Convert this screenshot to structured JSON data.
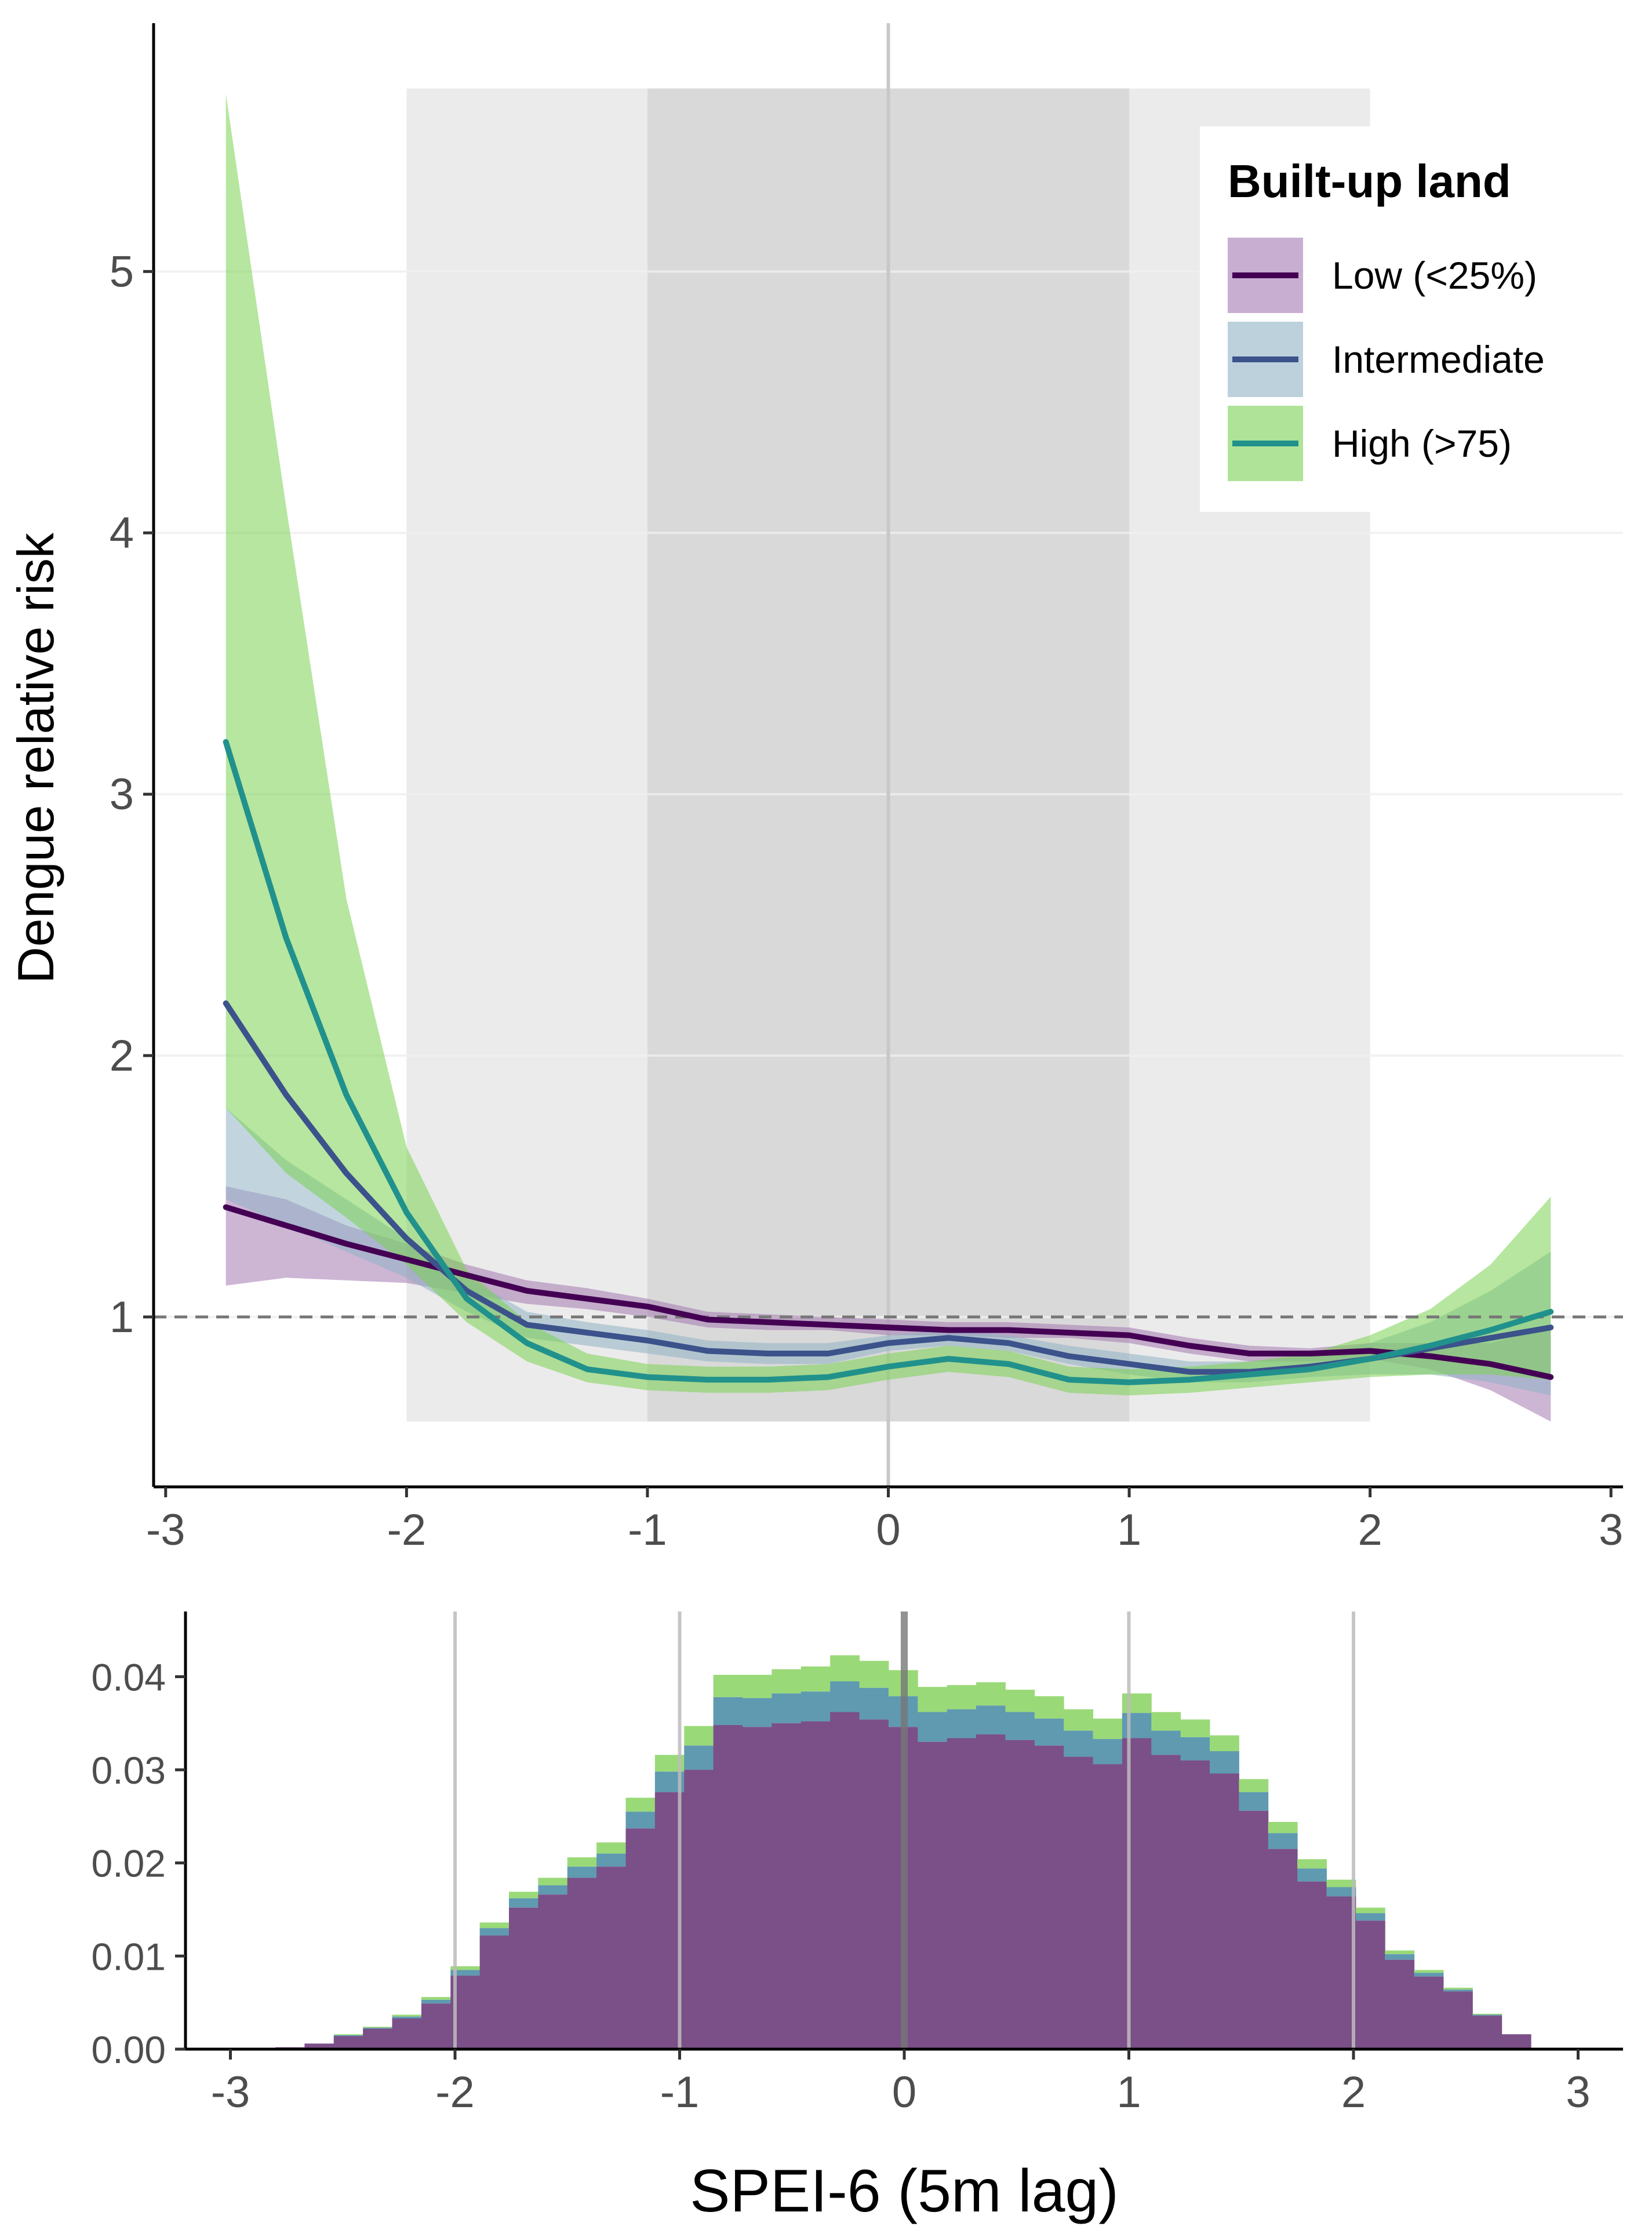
{
  "chart_data": [
    {
      "type": "line",
      "title": "",
      "xlabel": "",
      "ylabel": "Dengue relative risk",
      "xlim": [
        -3.05,
        3.05
      ],
      "ylim": [
        0.35,
        5.95
      ],
      "x_ticks": [
        -3,
        -2,
        -1,
        0,
        1,
        2,
        3
      ],
      "x_tick_labels": [
        "-3",
        "-2",
        "-1",
        "0",
        "1",
        "2",
        "3"
      ],
      "y_ticks": [
        1,
        2,
        3,
        4,
        5
      ],
      "y_tick_labels": [
        "1",
        "2",
        "3",
        "4",
        "5"
      ],
      "reference_line": 1,
      "vertical_line": 0,
      "shaded_regions": [
        {
          "x": [
            -2,
            2
          ],
          "y": [
            0.6,
            5.7
          ],
          "color": "#ebebeb"
        },
        {
          "x": [
            -1,
            1
          ],
          "y": [
            0.6,
            5.7
          ],
          "color": "#d9d9d9"
        }
      ],
      "legend": {
        "title": "Built-up land",
        "position": "top-right"
      },
      "x": [
        -2.75,
        -2.5,
        -2.25,
        -2,
        -1.75,
        -1.5,
        -1.25,
        -1,
        -0.75,
        -0.5,
        -0.25,
        0,
        0.25,
        0.5,
        0.75,
        1,
        1.25,
        1.5,
        1.75,
        2,
        2.25,
        2.5,
        2.75
      ],
      "series": [
        {
          "name": "Low (<25%)",
          "line_color": "#440154",
          "band_color": "#a478b0",
          "values": [
            1.42,
            1.35,
            1.28,
            1.22,
            1.16,
            1.1,
            1.07,
            1.04,
            0.99,
            0.98,
            0.97,
            0.96,
            0.95,
            0.95,
            0.94,
            0.93,
            0.89,
            0.86,
            0.86,
            0.87,
            0.85,
            0.82,
            0.77
          ],
          "lower": [
            1.12,
            1.15,
            1.14,
            1.13,
            1.09,
            1.05,
            1.03,
            1.0,
            0.96,
            0.95,
            0.95,
            0.93,
            0.93,
            0.92,
            0.92,
            0.9,
            0.86,
            0.83,
            0.83,
            0.84,
            0.8,
            0.72,
            0.6
          ],
          "upper": [
            1.5,
            1.45,
            1.35,
            1.28,
            1.2,
            1.14,
            1.11,
            1.07,
            1.02,
            1.01,
            1.0,
            0.99,
            0.98,
            0.98,
            0.97,
            0.96,
            0.92,
            0.89,
            0.88,
            0.9,
            0.9,
            0.9,
            0.96
          ]
        },
        {
          "name": "Intermediate",
          "line_color": "#3b528b",
          "band_color": "#8fb3c4",
          "values": [
            2.2,
            1.85,
            1.55,
            1.3,
            1.1,
            0.97,
            0.94,
            0.91,
            0.87,
            0.86,
            0.86,
            0.9,
            0.92,
            0.9,
            0.85,
            0.82,
            0.79,
            0.79,
            0.81,
            0.84,
            0.88,
            0.92,
            0.96
          ],
          "lower": [
            1.45,
            1.35,
            1.25,
            1.15,
            1.02,
            0.92,
            0.89,
            0.86,
            0.83,
            0.82,
            0.82,
            0.87,
            0.89,
            0.87,
            0.82,
            0.78,
            0.75,
            0.75,
            0.77,
            0.78,
            0.78,
            0.75,
            0.7
          ],
          "upper": [
            1.8,
            1.6,
            1.45,
            1.3,
            1.15,
            1.02,
            0.98,
            0.95,
            0.91,
            0.9,
            0.9,
            0.93,
            0.95,
            0.93,
            0.89,
            0.86,
            0.83,
            0.83,
            0.85,
            0.9,
            0.98,
            1.1,
            1.25
          ]
        },
        {
          "name": "High (>75)",
          "line_color": "#21918c",
          "band_color": "#7ad151",
          "values": [
            3.2,
            2.45,
            1.85,
            1.4,
            1.07,
            0.9,
            0.8,
            0.77,
            0.76,
            0.76,
            0.77,
            0.81,
            0.84,
            0.82,
            0.76,
            0.75,
            0.76,
            0.78,
            0.8,
            0.84,
            0.89,
            0.95,
            1.02
          ],
          "lower": [
            1.8,
            1.55,
            1.38,
            1.2,
            0.98,
            0.83,
            0.75,
            0.72,
            0.71,
            0.71,
            0.72,
            0.76,
            0.79,
            0.77,
            0.71,
            0.7,
            0.71,
            0.73,
            0.75,
            0.77,
            0.78,
            0.78,
            0.76
          ],
          "upper": [
            5.68,
            4.1,
            2.6,
            1.65,
            1.18,
            0.98,
            0.86,
            0.82,
            0.81,
            0.81,
            0.82,
            0.86,
            0.89,
            0.87,
            0.81,
            0.8,
            0.81,
            0.83,
            0.86,
            0.93,
            1.03,
            1.2,
            1.46
          ]
        }
      ]
    },
    {
      "type": "bar",
      "title": "",
      "xlabel": "SPEI-6 (5m lag)",
      "ylabel": "",
      "xlim": [
        -3.2,
        3.2
      ],
      "ylim": [
        0,
        0.047
      ],
      "x_ticks": [
        -3,
        -2,
        -1,
        0,
        1,
        2,
        3
      ],
      "x_tick_labels": [
        "-3",
        "-2",
        "-1",
        "0",
        "1",
        "2",
        "3"
      ],
      "y_ticks": [
        0,
        0.01,
        0.02,
        0.03,
        0.04
      ],
      "y_tick_labels": [
        "0.00",
        "0.01",
        "0.02",
        "0.03",
        "0.04"
      ],
      "vertical_lines": [
        -2,
        -1,
        0,
        1,
        2
      ],
      "bin_width": 0.13,
      "bin_left": [
        -2.8,
        -2.67,
        -2.54,
        -2.41,
        -2.28,
        -2.15,
        -2.02,
        -1.89,
        -1.76,
        -1.63,
        -1.5,
        -1.37,
        -1.24,
        -1.11,
        -0.98,
        -0.85,
        -0.72,
        -0.59,
        -0.46,
        -0.33,
        -0.2,
        -0.07,
        0.06,
        0.19,
        0.32,
        0.45,
        0.58,
        0.71,
        0.84,
        0.97,
        1.1,
        1.23,
        1.36,
        1.49,
        1.62,
        1.75,
        1.88,
        2.01,
        2.14,
        2.27,
        2.4,
        2.53,
        2.66
      ],
      "series": [
        {
          "name": "Low (<25%)",
          "color": "#7b4f88",
          "values": [
            0.0002,
            0.0006,
            0.0014,
            0.0022,
            0.0033,
            0.0049,
            0.0079,
            0.0122,
            0.0152,
            0.0166,
            0.0184,
            0.0196,
            0.0237,
            0.0276,
            0.03,
            0.0348,
            0.0346,
            0.035,
            0.0352,
            0.0362,
            0.0354,
            0.0346,
            0.033,
            0.0334,
            0.0338,
            0.0332,
            0.0326,
            0.0314,
            0.0306,
            0.0334,
            0.0316,
            0.031,
            0.0296,
            0.0256,
            0.0215,
            0.018,
            0.0164,
            0.0138,
            0.0096,
            0.0078,
            0.0062,
            0.0036,
            0.0016
          ]
        },
        {
          "name": "Intermediate",
          "color": "#5f9ab0",
          "values": [
            0.0,
            0.0,
            0.0001,
            0.0001,
            0.0002,
            0.0004,
            0.0006,
            0.0008,
            0.001,
            0.001,
            0.0012,
            0.0014,
            0.0018,
            0.0022,
            0.0026,
            0.003,
            0.0031,
            0.0032,
            0.0032,
            0.0033,
            0.0034,
            0.0033,
            0.0032,
            0.0031,
            0.0031,
            0.003,
            0.0029,
            0.0028,
            0.0027,
            0.0027,
            0.0026,
            0.0025,
            0.0024,
            0.002,
            0.0017,
            0.0014,
            0.001,
            0.0008,
            0.0006,
            0.0004,
            0.0002,
            0.0001,
            0.0
          ]
        },
        {
          "name": "High (>75)",
          "color": "#9ad978",
          "values": [
            0.0,
            0.0,
            0.0001,
            0.0001,
            0.0002,
            0.0003,
            0.0004,
            0.0006,
            0.0007,
            0.0008,
            0.001,
            0.0012,
            0.0015,
            0.0018,
            0.0021,
            0.0024,
            0.0025,
            0.0026,
            0.0027,
            0.0028,
            0.0029,
            0.0028,
            0.0027,
            0.0026,
            0.0025,
            0.0024,
            0.0024,
            0.0023,
            0.0022,
            0.0021,
            0.002,
            0.0019,
            0.0017,
            0.0014,
            0.0012,
            0.001,
            0.0008,
            0.0006,
            0.0004,
            0.0003,
            0.0002,
            0.0001,
            0.0
          ]
        }
      ]
    }
  ]
}
